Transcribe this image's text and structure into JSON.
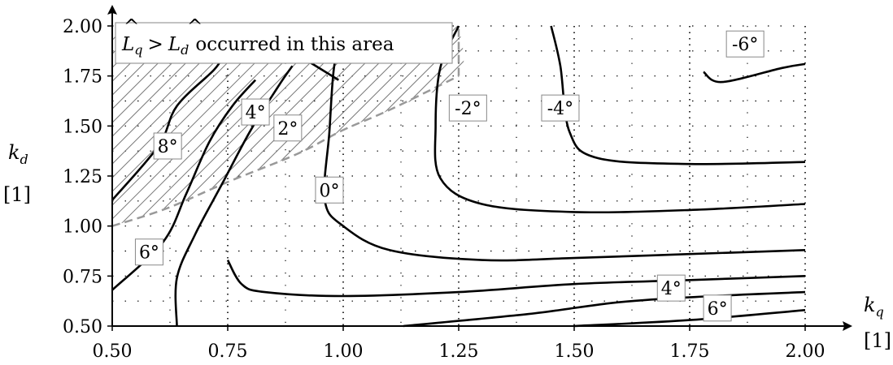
{
  "chart_data": {
    "type": "line",
    "title": "",
    "xlabel": "k_q",
    "xlabel_unit": "[1]",
    "ylabel": "k_d",
    "ylabel_unit": "[1]",
    "xlim": [
      0.5,
      2.0
    ],
    "ylim": [
      0.5,
      2.0
    ],
    "x_ticks": [
      "0.50",
      "0.75",
      "1.00",
      "1.25",
      "1.50",
      "1.75",
      "2.00"
    ],
    "y_ticks": [
      "0.50",
      "0.75",
      "1.00",
      "1.25",
      "1.50",
      "1.75",
      "2.00"
    ],
    "grid": "dotted",
    "annotation": {
      "text_parts": [
        "L",
        "q",
        ">",
        "L",
        "d",
        "occurred in this area"
      ],
      "region_boundary": [
        [
          0.5,
          1.0
        ],
        [
          0.62,
          1.09
        ],
        [
          0.75,
          1.22
        ],
        [
          0.9,
          1.36
        ],
        [
          1.0,
          1.48
        ],
        [
          1.1,
          1.58
        ],
        [
          1.25,
          1.75
        ],
        [
          1.25,
          2.0
        ]
      ]
    },
    "series": [
      {
        "label": "8°",
        "label_at": [
          0.62,
          1.4
        ],
        "points": [
          [
            0.5,
            1.13
          ],
          [
            0.6,
            1.4
          ],
          [
            0.64,
            1.6
          ],
          [
            0.72,
            1.78
          ],
          [
            0.74,
            1.85
          ]
        ]
      },
      {
        "label": "6°",
        "label_at": [
          0.58,
          0.87
        ],
        "points": [
          [
            0.5,
            0.68
          ],
          [
            0.61,
            0.92
          ],
          [
            0.66,
            1.16
          ],
          [
            0.71,
            1.42
          ],
          [
            0.76,
            1.6
          ],
          [
            0.81,
            1.73
          ]
        ]
      },
      {
        "label": "4°",
        "label_at": [
          0.81,
          1.57
        ],
        "points": [
          [
            0.64,
            0.5
          ],
          [
            0.64,
            0.74
          ],
          [
            0.68,
            0.96
          ],
          [
            0.74,
            1.22
          ],
          [
            0.8,
            1.48
          ],
          [
            0.86,
            1.7
          ],
          [
            0.89,
            1.8
          ]
        ]
      },
      {
        "label": "2°",
        "label_at": [
          0.88,
          1.49
        ],
        "points": [
          [
            0.8,
            2.0
          ],
          [
            0.99,
            1.73
          ]
        ]
      },
      {
        "label": "4°",
        "label_at": [
          1.71,
          0.69
        ],
        "points": [
          [
            1.13,
            0.5
          ],
          [
            1.4,
            0.56
          ],
          [
            1.6,
            0.62
          ],
          [
            1.8,
            0.65
          ],
          [
            2.0,
            0.67
          ]
        ]
      },
      {
        "label": "6°",
        "label_at": [
          1.81,
          0.59
        ],
        "points": [
          [
            1.5,
            0.5
          ],
          [
            1.75,
            0.53
          ],
          [
            2.0,
            0.58
          ]
        ]
      }
    ],
    "contours": [
      {
        "label": "2°",
        "points": [
          [
            0.75,
            0.83
          ],
          [
            0.78,
            0.71
          ],
          [
            0.83,
            0.67
          ],
          [
            1.0,
            0.65
          ],
          [
            1.25,
            0.67
          ],
          [
            1.5,
            0.71
          ],
          [
            1.75,
            0.73
          ],
          [
            2.0,
            0.75
          ]
        ]
      },
      {
        "label": "0°",
        "label_at": [
          0.97,
          1.18
        ],
        "points": [
          [
            1.0,
            2.0
          ],
          [
            0.98,
            1.79
          ],
          [
            0.97,
            1.47
          ],
          [
            0.96,
            1.13
          ],
          [
            1.0,
            1.0
          ],
          [
            1.1,
            0.88
          ],
          [
            1.3,
            0.83
          ],
          [
            1.5,
            0.84
          ],
          [
            1.75,
            0.86
          ],
          [
            2.0,
            0.88
          ]
        ]
      },
      {
        "label": "-2°",
        "label_at": [
          1.27,
          1.59
        ],
        "points": [
          [
            1.25,
            2.0
          ],
          [
            1.21,
            1.79
          ],
          [
            1.2,
            1.5
          ],
          [
            1.21,
            1.24
          ],
          [
            1.3,
            1.11
          ],
          [
            1.5,
            1.07
          ],
          [
            1.75,
            1.08
          ],
          [
            2.0,
            1.11
          ]
        ]
      },
      {
        "label": "-4°",
        "label_at": [
          1.47,
          1.59
        ],
        "points": [
          [
            1.45,
            2.0
          ],
          [
            1.47,
            1.8
          ],
          [
            1.49,
            1.47
          ],
          [
            1.55,
            1.34
          ],
          [
            1.75,
            1.31
          ],
          [
            2.0,
            1.32
          ]
        ]
      },
      {
        "label": "-6°",
        "label_at": [
          1.87,
          1.91
        ],
        "points": [
          [
            1.78,
            1.77
          ],
          [
            1.82,
            1.72
          ],
          [
            1.95,
            1.79
          ],
          [
            2.0,
            1.81
          ]
        ]
      }
    ]
  }
}
